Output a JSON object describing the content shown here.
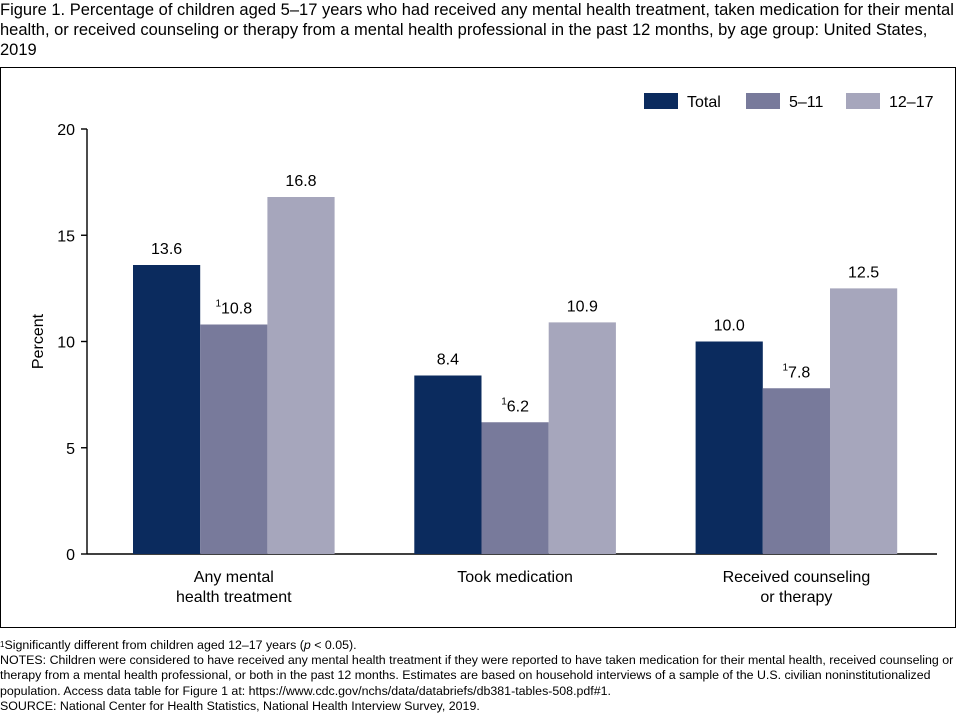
{
  "title": "Figure 1. Percentage of children aged 5–17 years who had received any mental health treatment, taken medication for their mental health, or received counseling or therapy from a mental health professional in the past 12 months, by age group: United States, 2019",
  "colors": {
    "total": "#0b2b5e",
    "age_5_11": "#787a9b",
    "age_12_17": "#a6a6bc"
  },
  "chart_data": {
    "type": "bar",
    "title": "",
    "xlabel": "",
    "ylabel": "Percent",
    "ylim": [
      0,
      20
    ],
    "yticks": [
      0,
      5,
      10,
      15,
      20
    ],
    "grid": false,
    "legend_position": "top-right",
    "categories": [
      "Any mental\nhealth treatment",
      "Took medication",
      "Received counseling\nor therapy"
    ],
    "series": [
      {
        "name": "Total",
        "color": "#0b2b5e",
        "values": [
          13.6,
          8.4,
          10.0
        ],
        "value_labels": [
          "13.6",
          "8.4",
          "10.0"
        ],
        "footnote_marks": [
          "",
          "",
          ""
        ]
      },
      {
        "name": "5–11",
        "color": "#787a9b",
        "values": [
          10.8,
          6.2,
          7.8
        ],
        "value_labels": [
          "10.8",
          "6.2",
          "7.8"
        ],
        "footnote_marks": [
          "1",
          "1",
          "1"
        ]
      },
      {
        "name": "12–17",
        "color": "#a6a6bc",
        "values": [
          16.8,
          10.9,
          12.5
        ],
        "value_labels": [
          "16.8",
          "10.9",
          "12.5"
        ],
        "footnote_marks": [
          "",
          "",
          ""
        ]
      }
    ]
  },
  "footnote": {
    "mark": "1",
    "text_before": "Significantly different from children aged 12–17 years (",
    "p_symbol": "p",
    "text_after": " < 0.05)."
  },
  "notes": "NOTES: Children were considered to have received any mental health treatment if they were reported to have taken medication for their mental health, received counseling or therapy from a mental health professional, or both in the past 12 months. Estimates are based on household interviews of a sample of the U.S. civilian noninstitutionalized population. Access data table for Figure 1 at: https://www.cdc.gov/nchs/data/databriefs/db381-tables-508.pdf#1.",
  "source": "SOURCE: National Center for Health Statistics, National Health Interview Survey, 2019."
}
